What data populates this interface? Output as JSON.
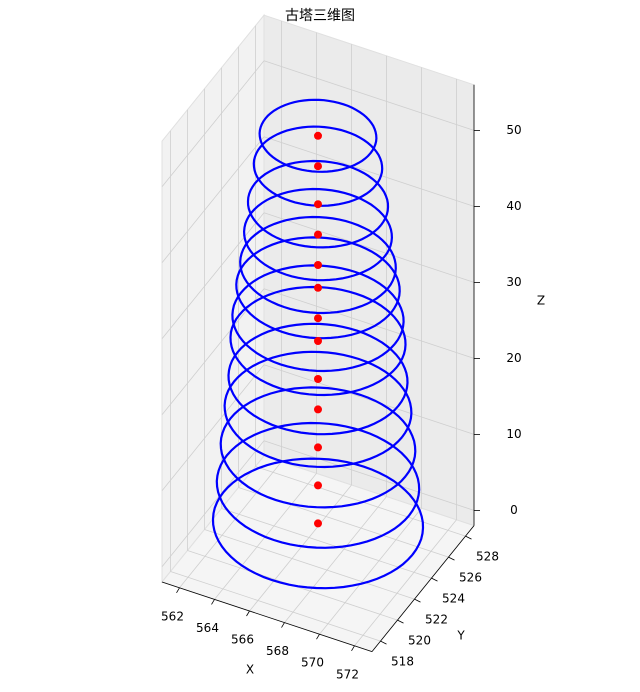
{
  "chart_data": {
    "type": "scatter3d",
    "title": "古塔三维图",
    "x_label": "X",
    "y_label": "Y",
    "z_label": "Z",
    "xlim": [
      561,
      573
    ],
    "ylim": [
      517,
      529
    ],
    "zlim": [
      -2,
      56
    ],
    "xticks": [
      562,
      564,
      566,
      568,
      570,
      572
    ],
    "yticks": [
      518,
      520,
      522,
      524,
      526,
      528
    ],
    "zticks": [
      0,
      10,
      20,
      30,
      40,
      50
    ],
    "grid": true,
    "series": [
      {
        "x": [
          567,
          567,
          567,
          567,
          567,
          567,
          567,
          567,
          567,
          567,
          567,
          567,
          567
        ],
        "y": [
          523,
          523,
          523,
          523,
          523,
          523,
          523,
          523,
          523,
          523,
          523,
          523,
          523
        ],
        "z": [
          2,
          7,
          12,
          17,
          21,
          26,
          29,
          33,
          36,
          40,
          44,
          49,
          53
        ],
        "radius": [
          5.4,
          5.2,
          5.0,
          4.8,
          4.6,
          4.5,
          4.4,
          4.2,
          4.0,
          3.8,
          3.6,
          3.3,
          3.0
        ],
        "color": "#ff0000",
        "ring_color": "#0000ff"
      }
    ]
  }
}
